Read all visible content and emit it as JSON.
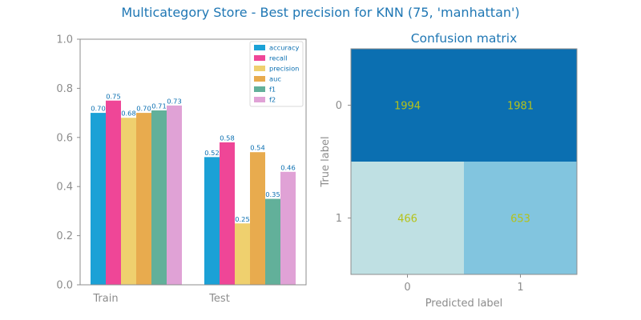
{
  "figure": {
    "suptitle": "Multicategory Store - Best precision for KNN (75, 'manhattan')"
  },
  "colors": {
    "title": "#1f77b4",
    "axis_text": "#8c8c8c",
    "spine": "#8c8c8c",
    "bar_label": "#0b6fb1",
    "cm_text": "#b5c21a",
    "series": [
      "#1ba1d6",
      "#ef4697",
      "#efd06e",
      "#e8ab4e",
      "#62b09a",
      "#e0a2d6"
    ],
    "cm_cells": [
      [
        "#0b6fb1",
        "#0b6fb1"
      ],
      [
        "#bfe0e3",
        "#82c5df"
      ]
    ]
  },
  "chart_data": [
    {
      "type": "bar",
      "categories": [
        "Train",
        "Test"
      ],
      "series": [
        {
          "name": "accuracy",
          "values": [
            0.7,
            0.52
          ]
        },
        {
          "name": "recall",
          "values": [
            0.75,
            0.58
          ]
        },
        {
          "name": "precision",
          "values": [
            0.68,
            0.25
          ]
        },
        {
          "name": "auc",
          "values": [
            0.7,
            0.54
          ]
        },
        {
          "name": "f1",
          "values": [
            0.71,
            0.35
          ]
        },
        {
          "name": "f2",
          "values": [
            0.73,
            0.46
          ]
        }
      ],
      "value_labels": [
        [
          "0.70",
          "0.52"
        ],
        [
          "0.75",
          "0.58"
        ],
        [
          "0.68",
          "0.25"
        ],
        [
          "0.70",
          "0.54"
        ],
        [
          "0.71",
          "0.35"
        ],
        [
          "0.73",
          "0.46"
        ]
      ],
      "ylim": [
        0.0,
        1.0
      ],
      "yticks": [
        0.0,
        0.2,
        0.4,
        0.6,
        0.8,
        1.0
      ],
      "ytick_labels": [
        "0.0",
        "0.2",
        "0.4",
        "0.6",
        "0.8",
        "1.0"
      ],
      "legend_position": "top-right",
      "grid": false
    },
    {
      "type": "heatmap",
      "title": "Confusion matrix",
      "xlabel": "Predicted label",
      "ylabel": "True label",
      "x_categories": [
        "0",
        "1"
      ],
      "y_categories": [
        "0",
        "1"
      ],
      "values": [
        [
          1994,
          1981
        ],
        [
          466,
          653
        ]
      ]
    }
  ]
}
